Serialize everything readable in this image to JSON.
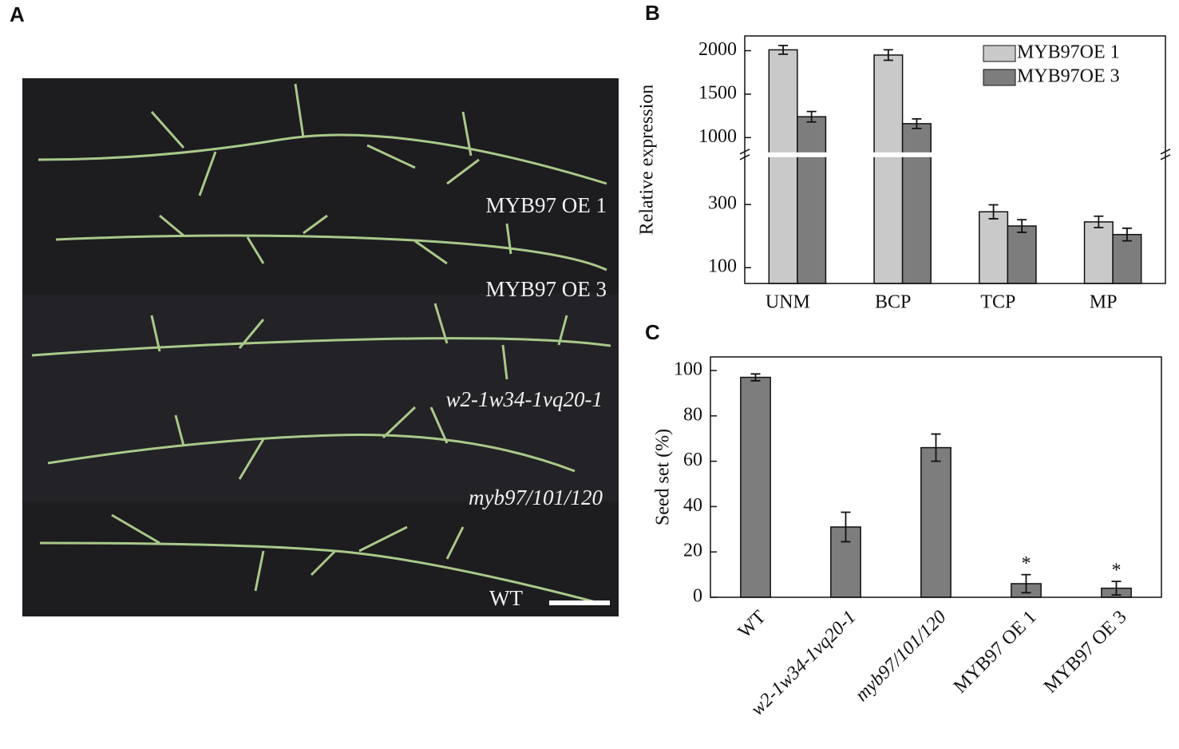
{
  "panel_a": {
    "letter": "A",
    "labels": [
      "MYB97 OE 1",
      "MYB97 OE 3",
      "w2-1w34-1vq20-1",
      "myb97/101/120",
      "WT"
    ]
  },
  "chart_data": [
    {
      "letter": "B",
      "type": "bar",
      "ylabel": "Relative expression",
      "categories": [
        "UNM",
        "BCP",
        "TCP",
        "MP"
      ],
      "series": [
        {
          "name": "MYB97OE 1",
          "color": "#c9c9c9",
          "values": [
            2010,
            1950,
            277,
            245
          ],
          "errors": [
            50,
            60,
            22,
            18
          ]
        },
        {
          "name": "MYB97OE 3",
          "color": "#7d7d7d",
          "values": [
            1240,
            1160,
            232,
            205
          ],
          "errors": [
            60,
            55,
            20,
            20
          ]
        }
      ],
      "ylim": [
        50,
        2170
      ],
      "ybreak": [
        450,
        830
      ],
      "yticks": [
        100,
        300,
        1000,
        1500,
        2000
      ],
      "legend": "upper right"
    },
    {
      "letter": "C",
      "type": "bar",
      "ylabel": "Seed set  (%)",
      "categories": [
        "WT",
        "w2-1w34-1vq20-1",
        "myb97/101/120",
        "MYB97 OE 1",
        "MYB97 OE 3"
      ],
      "italic_categories": [
        false,
        true,
        true,
        false,
        false
      ],
      "series": [
        {
          "color": "#7d7d7d",
          "values": [
            97,
            31,
            66,
            6,
            4
          ],
          "errors": [
            1.5,
            6.5,
            6,
            4,
            3
          ]
        }
      ],
      "significance": [
        null,
        null,
        null,
        "*",
        "*"
      ],
      "ylim": [
        0,
        106
      ],
      "yticks": [
        0,
        20,
        40,
        60,
        80,
        100
      ]
    }
  ]
}
